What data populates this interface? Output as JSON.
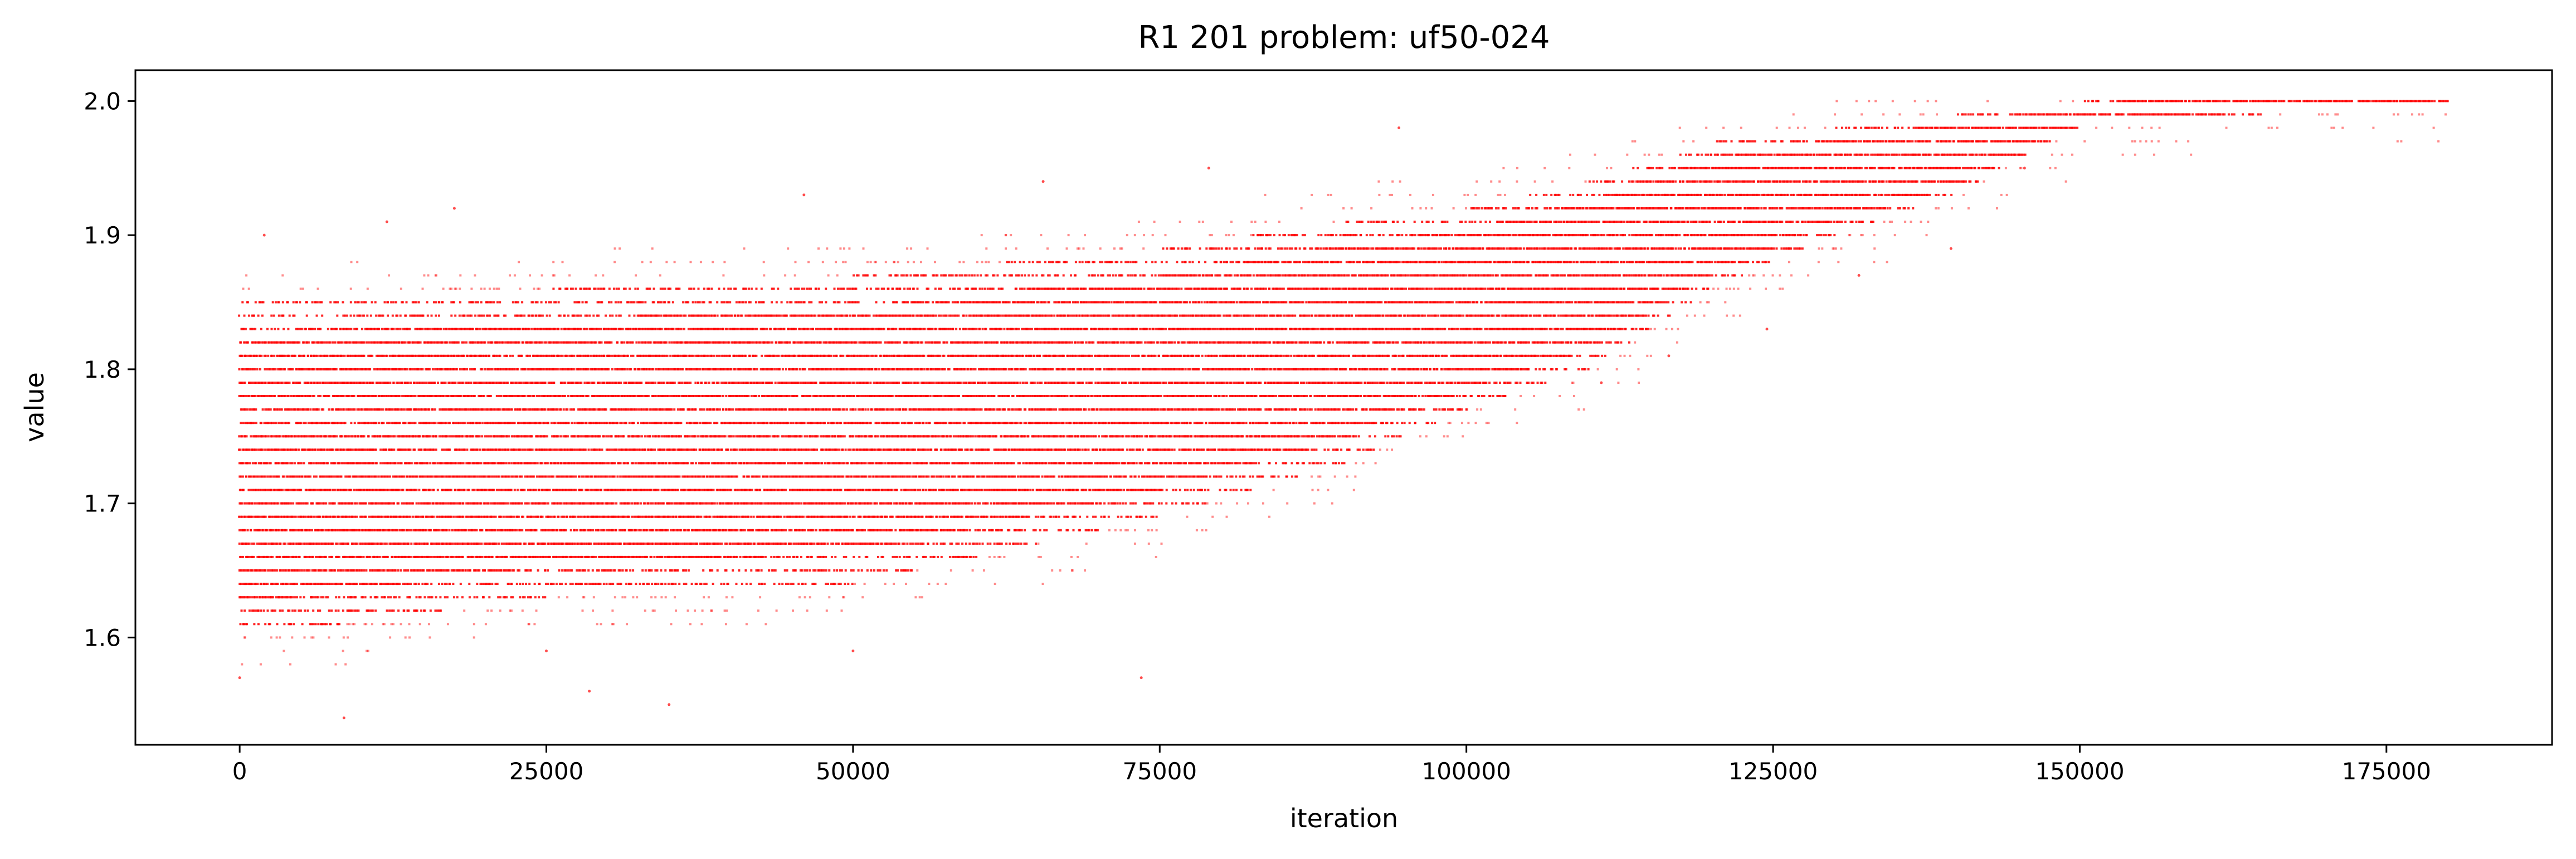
{
  "chart_data": {
    "type": "scatter",
    "title": "R1 201 problem: uf50-024",
    "xlabel": "iteration",
    "ylabel": "value",
    "xlim": [
      -8500,
      188500
    ],
    "ylim": [
      1.52,
      2.023
    ],
    "x_ticks": [
      0,
      25000,
      50000,
      75000,
      100000,
      125000,
      150000,
      175000
    ],
    "x_tick_labels": [
      "0",
      "25000",
      "50000",
      "75000",
      "100000",
      "125000",
      "150000",
      "175000"
    ],
    "y_ticks": [
      1.6,
      1.7,
      1.8,
      1.9,
      2.0
    ],
    "y_tick_labels": [
      "1.6",
      "1.7",
      "1.8",
      "1.9",
      "2.0"
    ],
    "grid": false,
    "marker_color": "#ff0000",
    "value_step": 0.01,
    "x_range": [
      0,
      180000
    ],
    "band_envelope": [
      {
        "x": 0,
        "lower": 1.6,
        "upper": 1.85
      },
      {
        "x": 25000,
        "lower": 1.63,
        "upper": 1.86
      },
      {
        "x": 50000,
        "lower": 1.64,
        "upper": 1.87
      },
      {
        "x": 75000,
        "lower": 1.69,
        "upper": 1.89
      },
      {
        "x": 90000,
        "lower": 1.73,
        "upper": 1.91
      },
      {
        "x": 100000,
        "lower": 1.77,
        "upper": 1.92
      },
      {
        "x": 110000,
        "lower": 1.8,
        "upper": 1.94
      },
      {
        "x": 120000,
        "lower": 1.86,
        "upper": 1.97
      },
      {
        "x": 130000,
        "lower": 1.9,
        "upper": 1.98
      },
      {
        "x": 140000,
        "lower": 1.93,
        "upper": 1.99
      },
      {
        "x": 150000,
        "lower": 1.98,
        "upper": 2.0
      },
      {
        "x": 165000,
        "lower": 2.0,
        "upper": 2.0
      },
      {
        "x": 180000,
        "lower": 2.0,
        "upper": 2.0
      }
    ],
    "outliers": [
      {
        "x": 0,
        "y": 1.57
      },
      {
        "x": 2000,
        "y": 1.9
      },
      {
        "x": 8500,
        "y": 1.54
      },
      {
        "x": 12000,
        "y": 1.91
      },
      {
        "x": 17500,
        "y": 1.92
      },
      {
        "x": 25000,
        "y": 1.59
      },
      {
        "x": 28500,
        "y": 1.56
      },
      {
        "x": 35000,
        "y": 1.55
      },
      {
        "x": 46000,
        "y": 1.93
      },
      {
        "x": 50000,
        "y": 1.59
      },
      {
        "x": 65500,
        "y": 1.94
      },
      {
        "x": 73500,
        "y": 1.57
      },
      {
        "x": 79000,
        "y": 1.95
      },
      {
        "x": 94500,
        "y": 1.98
      },
      {
        "x": 111000,
        "y": 1.79
      },
      {
        "x": 116500,
        "y": 1.81
      },
      {
        "x": 124500,
        "y": 1.83
      },
      {
        "x": 132000,
        "y": 1.87
      },
      {
        "x": 139500,
        "y": 1.89
      },
      {
        "x": 145500,
        "y": 1.95
      }
    ]
  }
}
